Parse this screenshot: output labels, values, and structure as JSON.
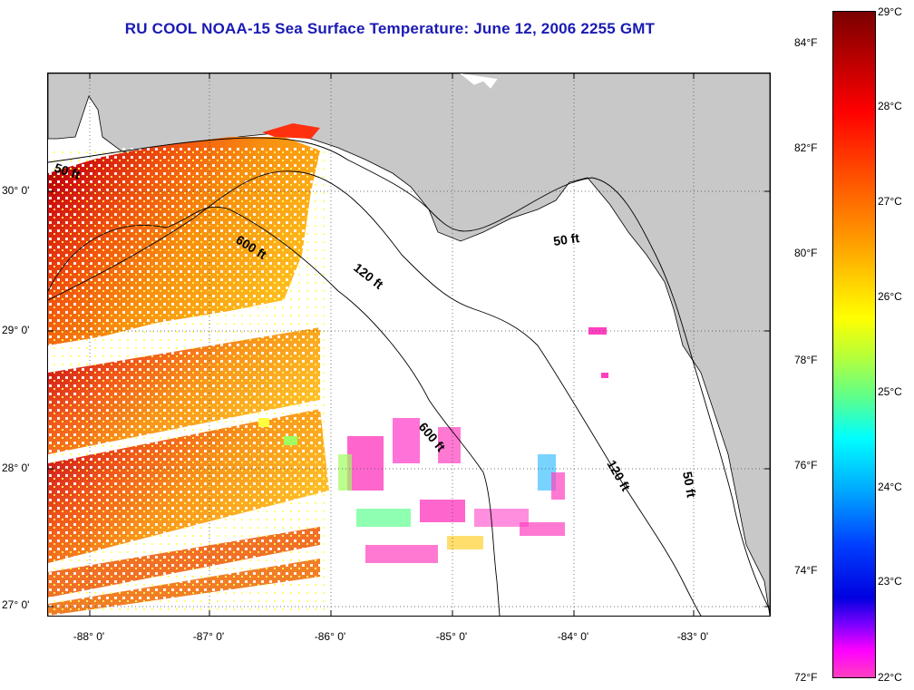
{
  "title": "RU COOL  NOAA-15  Sea Surface Temperature:  June 12, 2006 2255 GMT",
  "latitude_labels": [
    "30° 0'",
    "29° 0'",
    "28° 0'",
    "27° 0'"
  ],
  "longitude_labels": [
    "-88° 0'",
    "-87° 0'",
    "-86° 0'",
    "-85° 0'",
    "-84° 0'",
    "-83° 0'"
  ],
  "contour_labels": {
    "c50_west": "50 ft",
    "c600_north": "600 ft",
    "c120_north": "120 ft",
    "c50_east": "50 ft",
    "c600_south": "600 ft",
    "c120_south": "120 ft",
    "c50_south": "50 ft"
  },
  "colorbar": {
    "fahrenheit": [
      "84°F",
      "82°F",
      "80°F",
      "78°F",
      "76°F",
      "74°F",
      "72°F"
    ],
    "celsius": [
      "29°C",
      "28°C",
      "27°C",
      "26°C",
      "25°C",
      "24°C",
      "23°C",
      "22°C"
    ]
  },
  "colors": {
    "land": "#c8c8c8",
    "title": "#1a1ab4",
    "water": "#ffffff"
  }
}
